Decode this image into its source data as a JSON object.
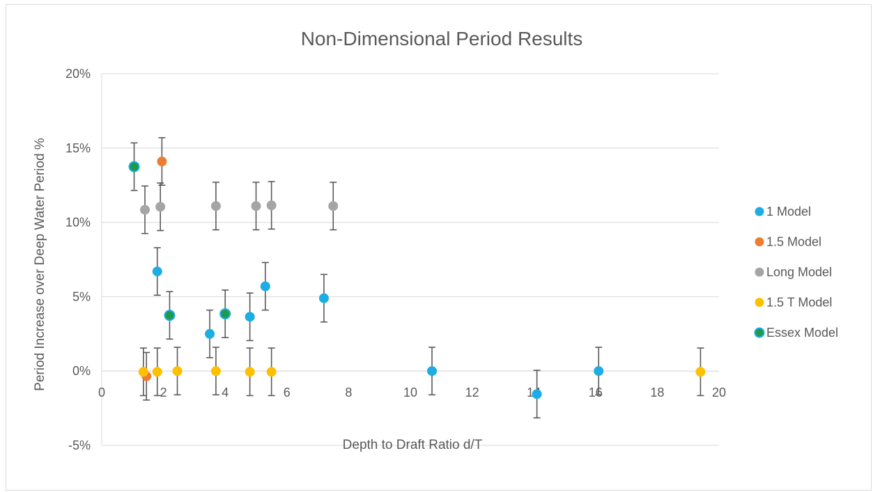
{
  "chart_data": {
    "type": "scatter",
    "title": "Non-Dimensional Period Results",
    "xlabel": "Depth to Draft Ratio d/T",
    "ylabel": "Period Increase over Deep Water Period %",
    "xlim": [
      0,
      20
    ],
    "ylim": [
      -5,
      20
    ],
    "x_ticks": [
      "0",
      "2",
      "4",
      "6",
      "8",
      "10",
      "12",
      "14",
      "16",
      "18",
      "20"
    ],
    "y_ticks": [
      "-5%",
      "0%",
      "5%",
      "10%",
      "15%",
      "20%"
    ],
    "grid": "horizontal",
    "legend_position": "right",
    "error_bar": "±1.6%",
    "series": [
      {
        "name": "1 Model",
        "color": "#1CADE4",
        "points": [
          {
            "x": 1.8,
            "y": 6.7
          },
          {
            "x": 3.5,
            "y": 2.5
          },
          {
            "x": 4.8,
            "y": 3.65
          },
          {
            "x": 5.3,
            "y": 5.7
          },
          {
            "x": 7.2,
            "y": 4.9
          },
          {
            "x": 10.7,
            "y": 0.0
          },
          {
            "x": 14.1,
            "y": -1.55
          },
          {
            "x": 16.1,
            "y": 0.0
          }
        ]
      },
      {
        "name": "1.5 Model",
        "color": "#ED7D31",
        "points": [
          {
            "x": 1.45,
            "y": -0.35
          },
          {
            "x": 1.95,
            "y": 14.1
          }
        ]
      },
      {
        "name": "Long Model",
        "color": "#A5A5A5",
        "points": [
          {
            "x": 1.4,
            "y": 10.85
          },
          {
            "x": 1.9,
            "y": 11.05
          },
          {
            "x": 3.7,
            "y": 11.1
          },
          {
            "x": 5.0,
            "y": 11.1
          },
          {
            "x": 5.5,
            "y": 11.15
          },
          {
            "x": 7.5,
            "y": 11.1
          }
        ]
      },
      {
        "name": "1.5 T Model",
        "color": "#FFC000",
        "points": [
          {
            "x": 1.35,
            "y": -0.05
          },
          {
            "x": 1.8,
            "y": -0.05
          },
          {
            "x": 2.45,
            "y": 0.0
          },
          {
            "x": 3.7,
            "y": 0.0
          },
          {
            "x": 4.8,
            "y": -0.05
          },
          {
            "x": 5.5,
            "y": -0.05
          },
          {
            "x": 19.4,
            "y": -0.05
          }
        ]
      },
      {
        "name": "Essex Model",
        "color": "#1E9A4F",
        "border": "#1CADE4",
        "points": [
          {
            "x": 1.05,
            "y": 13.75
          },
          {
            "x": 2.2,
            "y": 3.75
          },
          {
            "x": 4.0,
            "y": 3.85
          }
        ]
      }
    ]
  }
}
